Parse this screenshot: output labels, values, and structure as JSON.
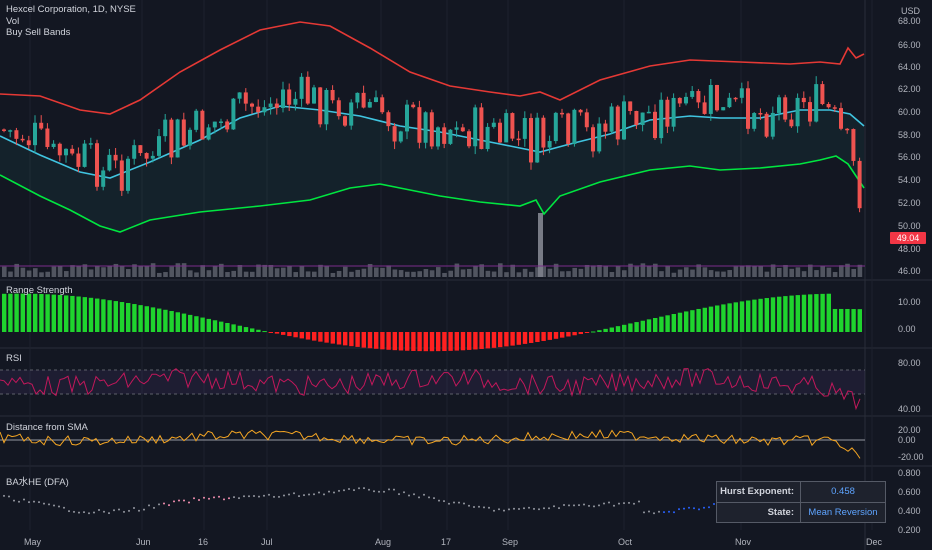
{
  "header": {
    "symbol_line": "Hexcel Corporation, 1D, NYSE",
    "indicator_vol": "Vol",
    "indicator_bands": "Buy Sell Bands",
    "currency": "USD",
    "last_price": "49.04"
  },
  "panes": {
    "range_strength": "Range Strength",
    "rsi": "RSI",
    "distance": "Distance from SMA",
    "hurst": "BA水HE (DFA)"
  },
  "hurst_table": {
    "exp_label": "Hurst Exponent:",
    "exp_value": "0.458",
    "state_label": "State:",
    "state_value": "Mean Reversion"
  },
  "axes": {
    "price_ticks": [
      "68.00",
      "66.00",
      "64.00",
      "62.00",
      "60.00",
      "58.00",
      "56.00",
      "54.00",
      "52.00",
      "50.00",
      "48.00",
      "46.00"
    ],
    "range_ticks": [
      "10.00",
      "0.00"
    ],
    "rsi_ticks": [
      "80.00",
      "40.00",
      "20.00"
    ],
    "dist_ticks": [
      "0.00",
      "-20.00"
    ],
    "hurst_ticks": [
      "0.800",
      "0.600",
      "0.400",
      "0.200"
    ],
    "time_labels": [
      "May",
      "Jun",
      "16",
      "Jul",
      "Aug",
      "17",
      "Sep",
      "Oct",
      "Nov",
      "Dec"
    ]
  },
  "colors": {
    "background": "#131722",
    "up": "#26a69a",
    "down": "#ef5350",
    "upper_band": "#e53935",
    "mid_band": "#40c4e0",
    "lower_band": "#00e640",
    "rsi": "#c2185b",
    "distance": "#f5a623",
    "range_pos": "#1fd42e",
    "range_neg": "#ff2020"
  }
}
